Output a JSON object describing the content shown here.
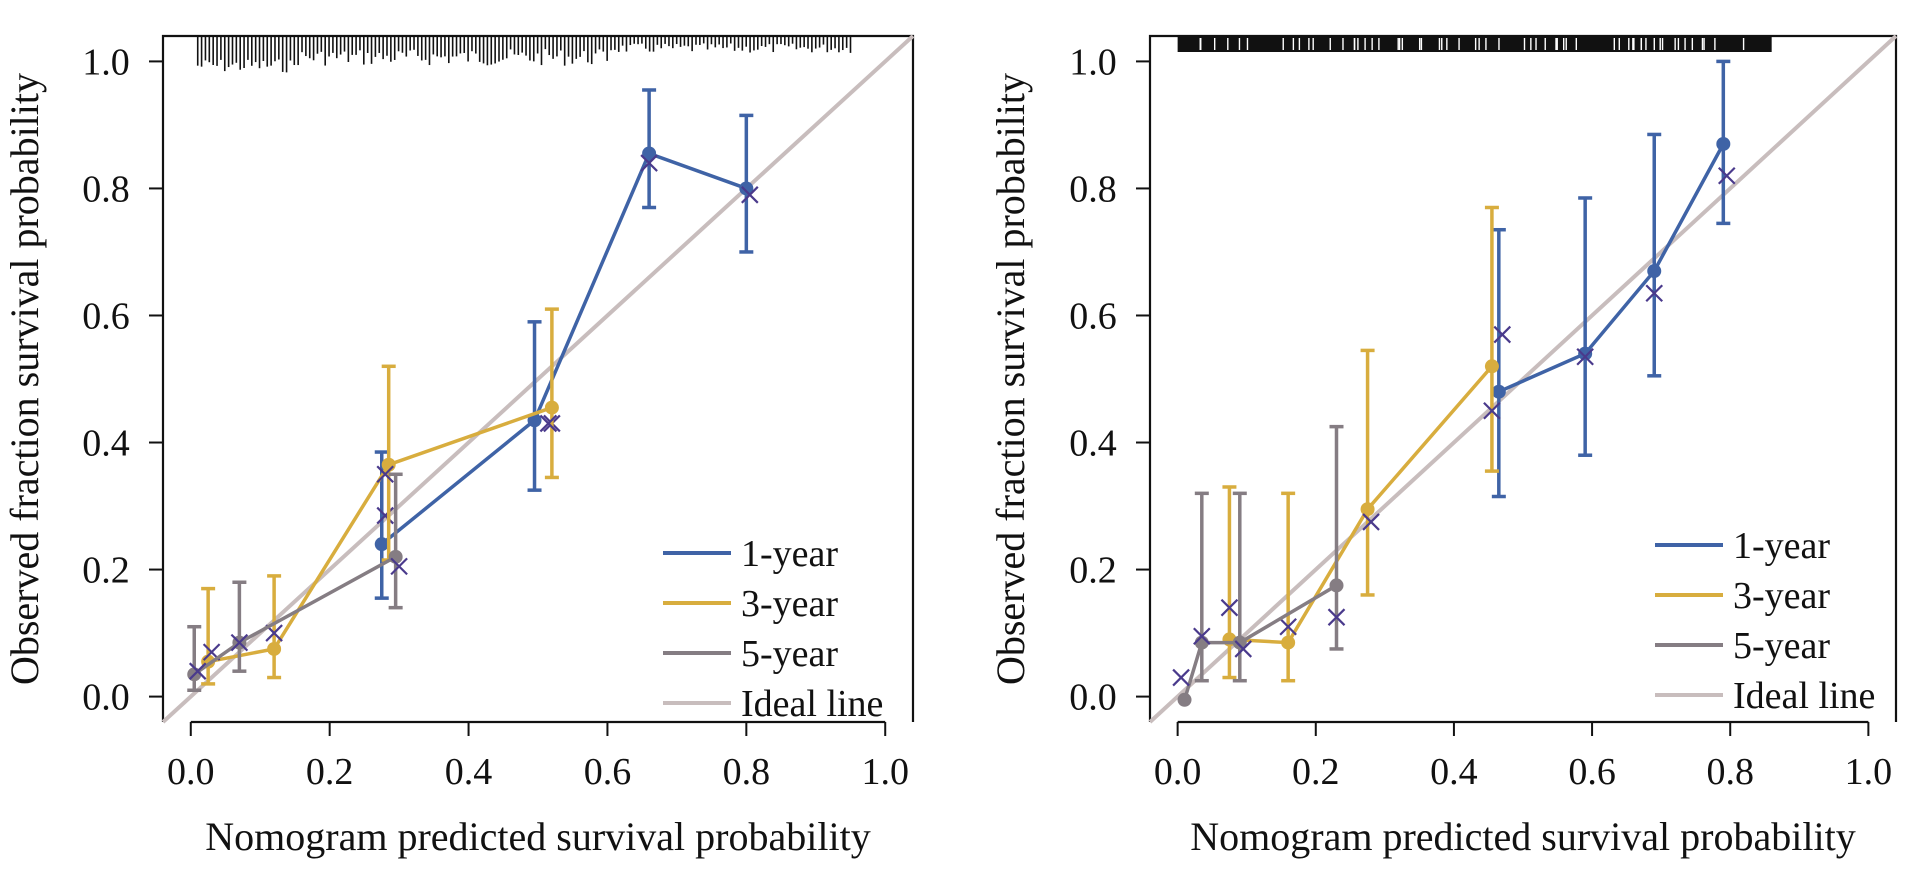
{
  "colors": {
    "1-year": "#3f63a6",
    "3-year": "#d8ad3e",
    "5-year": "#857d83",
    "ideal": "#c8bdbd",
    "cross": "#4a3a8c",
    "rug": "#111111",
    "axis": "#111111"
  },
  "chart_data": [
    {
      "type": "line",
      "title": "",
      "xlabel": "Nomogram predicted survival probability",
      "ylabel": "Observed fraction survival probability",
      "xlim": [
        -0.04,
        1.04
      ],
      "ylim": [
        -0.04,
        1.04
      ],
      "xticks": [
        "0.0",
        "0.2",
        "0.4",
        "0.6",
        "0.8",
        "1.0"
      ],
      "yticks": [
        "0.0",
        "0.2",
        "0.4",
        "0.6",
        "0.8",
        "1.0"
      ],
      "grid": false,
      "legend_position": "bottom-right",
      "legend": [
        "1-year",
        "3-year",
        "5-year",
        "Ideal line"
      ],
      "rug": {
        "position": "top",
        "style": "dense",
        "range": [
          0.01,
          0.95
        ]
      },
      "series": [
        {
          "name": "1-year",
          "color_key": "1-year",
          "points": [
            {
              "x": 0.275,
              "y": 0.24,
              "lo": 0.155,
              "hi": 0.385,
              "cx": 0.28,
              "cy": 0.285
            },
            {
              "x": 0.495,
              "y": 0.435,
              "lo": 0.325,
              "hi": 0.59,
              "cx": 0.52,
              "cy": 0.43
            },
            {
              "x": 0.66,
              "y": 0.855,
              "lo": 0.77,
              "hi": 0.955,
              "cx": 0.66,
              "cy": 0.84
            },
            {
              "x": 0.8,
              "y": 0.8,
              "lo": 0.7,
              "hi": 0.915,
              "cx": 0.805,
              "cy": 0.79
            }
          ]
        },
        {
          "name": "3-year",
          "color_key": "3-year",
          "points": [
            {
              "x": 0.025,
              "y": 0.055,
              "lo": 0.02,
              "hi": 0.17,
              "cx": 0.03,
              "cy": 0.07
            },
            {
              "x": 0.12,
              "y": 0.075,
              "lo": 0.03,
              "hi": 0.19,
              "cx": 0.12,
              "cy": 0.1
            },
            {
              "x": 0.285,
              "y": 0.365,
              "lo": 0.215,
              "hi": 0.52,
              "cx": 0.28,
              "cy": 0.35
            },
            {
              "x": 0.52,
              "y": 0.455,
              "lo": 0.345,
              "hi": 0.61,
              "cx": 0.515,
              "cy": 0.43
            }
          ]
        },
        {
          "name": "5-year",
          "color_key": "5-year",
          "points": [
            {
              "x": 0.005,
              "y": 0.035,
              "lo": 0.01,
              "hi": 0.11,
              "cx": 0.01,
              "cy": 0.04
            },
            {
              "x": 0.07,
              "y": 0.085,
              "lo": 0.04,
              "hi": 0.18,
              "cx": 0.07,
              "cy": 0.085
            },
            {
              "x": 0.295,
              "y": 0.22,
              "lo": 0.14,
              "hi": 0.35,
              "cx": 0.3,
              "cy": 0.205
            }
          ]
        }
      ]
    },
    {
      "type": "line",
      "title": "",
      "xlabel": "Nomogram predicted survival probability",
      "ylabel": "Observed fraction survival probability",
      "xlim": [
        -0.04,
        1.04
      ],
      "ylim": [
        -0.04,
        1.04
      ],
      "xticks": [
        "0.0",
        "0.2",
        "0.4",
        "0.6",
        "0.8",
        "1.0"
      ],
      "yticks": [
        "0.0",
        "0.2",
        "0.4",
        "0.6",
        "0.8",
        "1.0"
      ],
      "grid": false,
      "legend_position": "bottom-right",
      "legend": [
        "1-year",
        "3-year",
        "5-year",
        "Ideal line"
      ],
      "rug": {
        "position": "top",
        "style": "bar",
        "range": [
          0.0,
          0.86
        ]
      },
      "series": [
        {
          "name": "1-year",
          "color_key": "1-year",
          "points": [
            {
              "x": 0.465,
              "y": 0.48,
              "lo": 0.315,
              "hi": 0.735,
              "cx": 0.47,
              "cy": 0.57
            },
            {
              "x": 0.59,
              "y": 0.54,
              "lo": 0.38,
              "hi": 0.785,
              "cx": 0.59,
              "cy": 0.535
            },
            {
              "x": 0.69,
              "y": 0.67,
              "lo": 0.505,
              "hi": 0.885,
              "cx": 0.69,
              "cy": 0.635
            },
            {
              "x": 0.79,
              "y": 0.87,
              "lo": 0.745,
              "hi": 1.0,
              "cx": 0.795,
              "cy": 0.82
            }
          ]
        },
        {
          "name": "3-year",
          "color_key": "3-year",
          "points": [
            {
              "x": 0.075,
              "y": 0.09,
              "lo": 0.03,
              "hi": 0.33,
              "cx": 0.075,
              "cy": 0.14
            },
            {
              "x": 0.16,
              "y": 0.085,
              "lo": 0.025,
              "hi": 0.32,
              "cx": 0.16,
              "cy": 0.11
            },
            {
              "x": 0.275,
              "y": 0.295,
              "lo": 0.16,
              "hi": 0.545,
              "cx": 0.28,
              "cy": 0.275
            },
            {
              "x": 0.455,
              "y": 0.52,
              "lo": 0.355,
              "hi": 0.77,
              "cx": 0.455,
              "cy": 0.45
            }
          ]
        },
        {
          "name": "5-year",
          "color_key": "5-year",
          "points": [
            {
              "x": 0.01,
              "y": -0.005,
              "lo": -0.005,
              "hi": -0.005,
              "cx": 0.005,
              "cy": 0.03
            },
            {
              "x": 0.035,
              "y": 0.085,
              "lo": 0.025,
              "hi": 0.32,
              "cx": 0.035,
              "cy": 0.095
            },
            {
              "x": 0.09,
              "y": 0.085,
              "lo": 0.025,
              "hi": 0.32,
              "cx": 0.095,
              "cy": 0.075
            },
            {
              "x": 0.23,
              "y": 0.175,
              "lo": 0.075,
              "hi": 0.425,
              "cx": 0.23,
              "cy": 0.125
            }
          ]
        }
      ]
    }
  ]
}
